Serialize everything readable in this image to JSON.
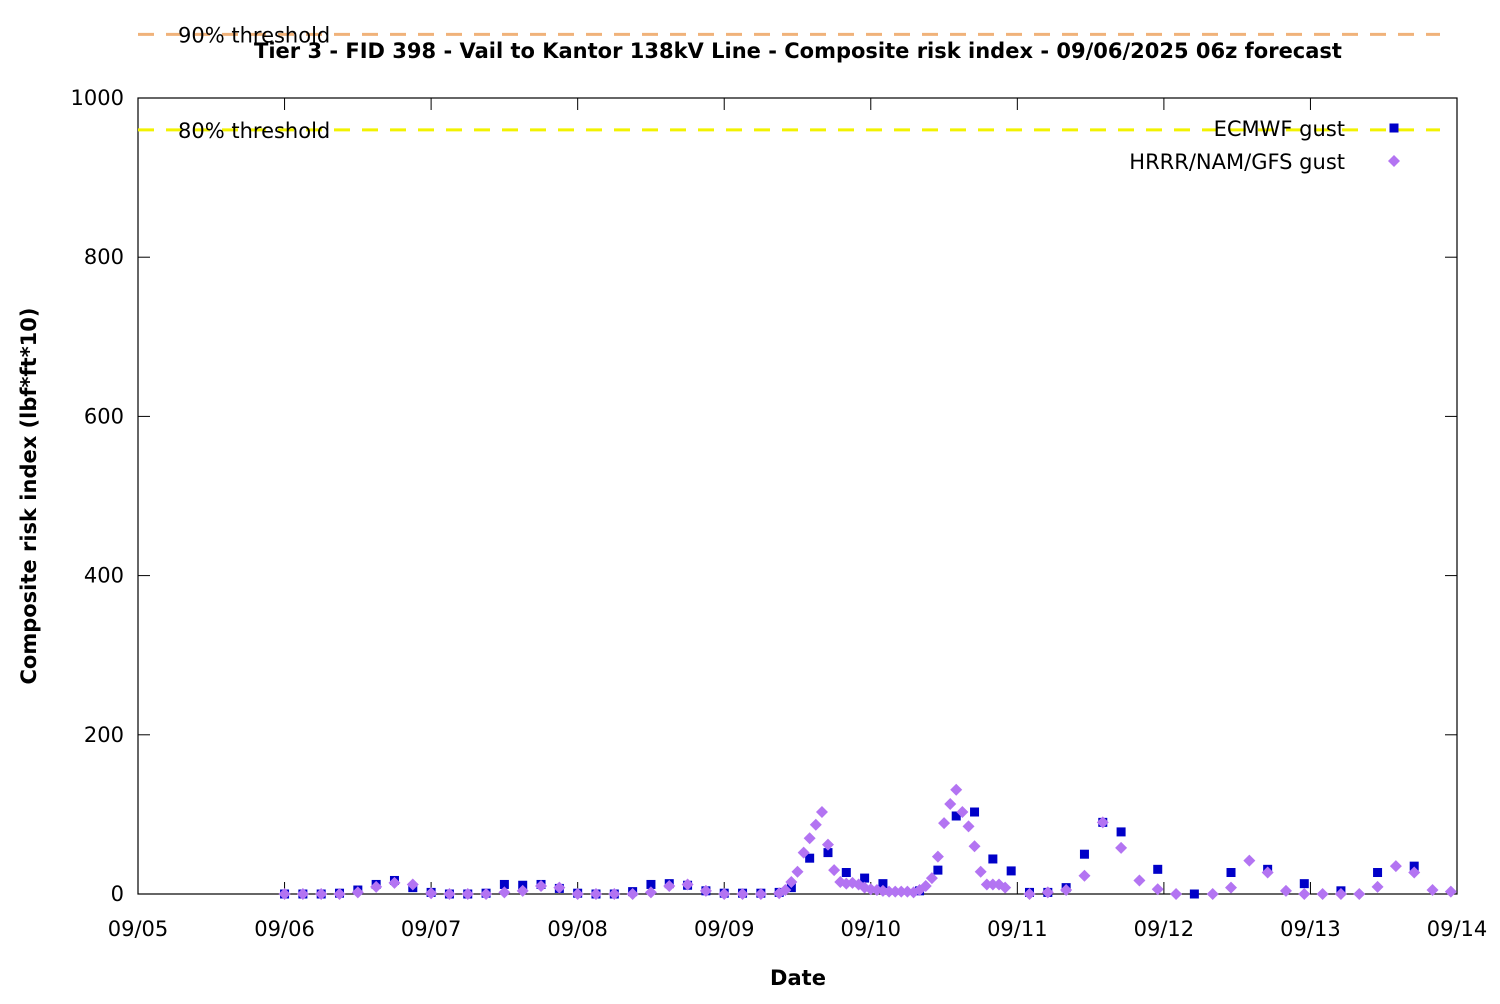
{
  "chart_data": {
    "type": "scatter",
    "title": "Tier 3 - FID 398 - Vail to Kantor 138kV Line - Composite risk index - 09/06/2025 06z forecast",
    "x_label": "Date",
    "y_label": "Composite risk index (lbf*ft*10)",
    "xlim": [
      0,
      9
    ],
    "xticks": [
      {
        "value": 0,
        "label": "09/05"
      },
      {
        "value": 1,
        "label": "09/06"
      },
      {
        "value": 2,
        "label": "09/07"
      },
      {
        "value": 3,
        "label": "09/08"
      },
      {
        "value": 4,
        "label": "09/09"
      },
      {
        "value": 5,
        "label": "09/10"
      },
      {
        "value": 6,
        "label": "09/11"
      },
      {
        "value": 7,
        "label": "09/12"
      },
      {
        "value": 8,
        "label": "09/13"
      },
      {
        "value": 9,
        "label": "09/14"
      }
    ],
    "ylim": [
      0,
      1000
    ],
    "yticks": [
      0,
      200,
      400,
      600,
      800,
      1000
    ],
    "thresholds": [
      {
        "name": "90% threshold",
        "value": 1080,
        "color": "#f0b27a"
      },
      {
        "name": "80% threshold",
        "value": 960,
        "color": "#f2f200"
      }
    ],
    "series": [
      {
        "name": "ECMWF gust",
        "color": "#0000c8",
        "marker": "square",
        "x": [
          1,
          1.125,
          1.25,
          1.375,
          1.5,
          1.625,
          1.75,
          1.875,
          2,
          2.125,
          2.25,
          2.375,
          2.5,
          2.625,
          2.75,
          2.875,
          3,
          3.125,
          3.25,
          3.375,
          3.5,
          3.625,
          3.75,
          3.875,
          4,
          4.125,
          4.25,
          4.375,
          4.458,
          4.583,
          4.708,
          4.833,
          4.958,
          5.083,
          5.333,
          5.458,
          5.583,
          5.708,
          5.833,
          5.958,
          6.083,
          6.208,
          6.333,
          6.458,
          6.583,
          6.708,
          6.958,
          7.208,
          7.458,
          7.708,
          7.958,
          8.208,
          8.458,
          8.708
        ],
        "values": [
          0,
          0,
          0,
          1,
          5,
          12,
          17,
          8,
          2,
          0,
          0,
          1,
          12,
          11,
          12,
          7,
          1,
          0,
          0,
          3,
          12,
          13,
          11,
          4,
          1,
          1,
          1,
          2,
          8,
          45,
          52,
          27,
          20,
          13,
          4,
          30,
          98,
          103,
          44,
          29,
          2,
          2,
          8,
          50,
          90,
          78,
          31,
          0,
          27,
          31,
          13,
          4,
          27,
          35
        ]
      },
      {
        "name": "HRRR/NAM/GFS gust",
        "color": "#b374f2",
        "marker": "diamond",
        "x": [
          1,
          1.125,
          1.25,
          1.375,
          1.5,
          1.625,
          1.75,
          1.875,
          2,
          2.125,
          2.25,
          2.375,
          2.5,
          2.625,
          2.75,
          2.875,
          3,
          3.125,
          3.25,
          3.375,
          3.5,
          3.625,
          3.75,
          3.875,
          4,
          4.125,
          4.25,
          4.375,
          4.417,
          4.458,
          4.5,
          4.542,
          4.583,
          4.625,
          4.667,
          4.708,
          4.75,
          4.792,
          4.833,
          4.875,
          4.917,
          4.958,
          5,
          5.042,
          5.083,
          5.125,
          5.167,
          5.208,
          5.25,
          5.292,
          5.333,
          5.375,
          5.417,
          5.458,
          5.5,
          5.542,
          5.583,
          5.625,
          5.667,
          5.708,
          5.75,
          5.792,
          5.833,
          5.875,
          5.917,
          6.083,
          6.208,
          6.333,
          6.458,
          6.583,
          6.708,
          6.833,
          6.958,
          7.083,
          7.333,
          7.458,
          7.583,
          7.708,
          7.833,
          7.958,
          8.083,
          8.208,
          8.333,
          8.458,
          8.583,
          8.708,
          8.833,
          8.958
        ],
        "values": [
          0,
          0,
          0,
          0,
          2,
          9,
          14,
          12,
          1,
          0,
          0,
          0,
          2,
          4,
          10,
          8,
          0,
          0,
          0,
          0,
          2,
          10,
          12,
          4,
          0,
          0,
          0,
          1,
          5,
          15,
          28,
          52,
          70,
          87,
          103,
          62,
          30,
          15,
          13,
          14,
          12,
          8,
          6,
          5,
          4,
          3,
          3,
          3,
          3,
          2,
          5,
          10,
          20,
          47,
          89,
          113,
          131,
          103,
          85,
          60,
          28,
          12,
          12,
          12,
          8,
          0,
          2,
          5,
          23,
          90,
          58,
          17,
          6,
          0,
          0,
          8,
          42,
          27,
          4,
          0,
          0,
          0,
          0,
          9,
          35,
          27,
          5,
          3
        ]
      }
    ]
  }
}
